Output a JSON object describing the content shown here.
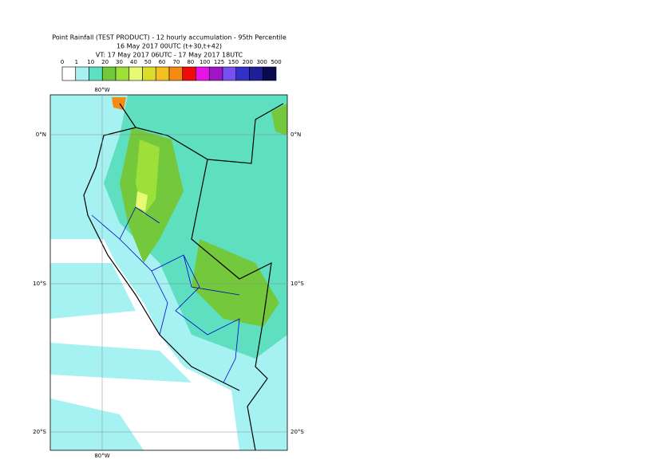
{
  "header": {
    "title": "Point Rainfall (TEST PRODUCT) - 12 hourly accumulation - 95th Percentile",
    "base_time": "16 May 2017 00UTC (t+30,t+42)",
    "valid_time": "VT: 17 May 2017 06UTC - 17 May 2017 18UTC"
  },
  "legend": {
    "labels": [
      "0",
      "1",
      "10",
      "20",
      "30",
      "40",
      "50",
      "60",
      "70",
      "80",
      "100",
      "125",
      "150",
      "200",
      "300",
      "500"
    ],
    "colors": [
      "#ffffff",
      "#a6f2f2",
      "#5ee0c0",
      "#74c83c",
      "#9ee03a",
      "#e6fa74",
      "#dcdc2a",
      "#f4c020",
      "#f48c14",
      "#f00a0a",
      "#e614e6",
      "#a014c8",
      "#7850f0",
      "#3232c8",
      "#1e1e96",
      "#0a0a50"
    ]
  },
  "map": {
    "lon_label": "80°W",
    "lat_labels": [
      "0°N",
      "10°S",
      "20°S"
    ]
  }
}
